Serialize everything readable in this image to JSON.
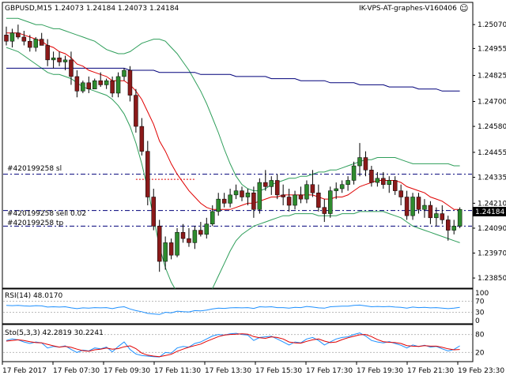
{
  "window": {
    "symbol_line": "GBPUSD,M15  1.24073 1.24184 1.24073 1.24184",
    "ea_label": "IK-VPS-AT-graphes-V160406",
    "smiley": "☺"
  },
  "price_axis": {
    "ticks": [
      "1.25070",
      "1.24955",
      "1.24825",
      "1.24700",
      "1.24580",
      "1.24455",
      "1.24335",
      "1.24210",
      "1.24090",
      "1.23970",
      "1.23850"
    ],
    "current_price": "1.24184"
  },
  "order_lines": {
    "sl_label": "#420199258 sl",
    "sell_label": "#420199258 sell 0.02",
    "tp_label": "#420199258 tp"
  },
  "rsi": {
    "label": "RSI(14) 48.0170",
    "levels": [
      "100",
      "70",
      "30",
      "0"
    ]
  },
  "stoch": {
    "label": "Sto(5,3,3) 42.2819 30.2241",
    "levels": [
      "80",
      "20"
    ]
  },
  "time_axis": {
    "labels": [
      "17 Feb 2017",
      "17 Feb 07:30",
      "17 Feb 09:30",
      "17 Feb 11:30",
      "17 Feb 13:30",
      "17 Feb 15:30",
      "17 Feb 17:30",
      "17 Feb 19:30",
      "17 Feb 21:30",
      "19 Feb 23:30"
    ]
  },
  "colors": {
    "bull": "#2e8b2e",
    "bear": "#8b1a1a",
    "ma_fast": "#e00000",
    "ma_slow": "#00007a",
    "band": "#2e9e5a",
    "rsi_line": "#1e90ff",
    "stoch_main": "#1e90ff",
    "stoch_signal": "#e00000",
    "order_line": "#00007a",
    "price_box": "#000000"
  },
  "chart_data": {
    "type": "candlestick",
    "symbol": "GBPUSD",
    "timeframe": "M15",
    "ylim": [
      1.2382,
      1.2512
    ],
    "candles": [
      [
        1.2502,
        1.2506,
        1.2497,
        1.2499
      ],
      [
        1.2499,
        1.2505,
        1.2496,
        1.2503
      ],
      [
        1.2503,
        1.2507,
        1.25,
        1.2501
      ],
      [
        1.2501,
        1.2504,
        1.2497,
        1.2499
      ],
      [
        1.2499,
        1.2502,
        1.2494,
        1.2496
      ],
      [
        1.2496,
        1.2501,
        1.2494,
        1.25
      ],
      [
        1.25,
        1.2503,
        1.2497,
        1.2497
      ],
      [
        1.2497,
        1.25,
        1.2487,
        1.249
      ],
      [
        1.249,
        1.2494,
        1.2486,
        1.2491
      ],
      [
        1.2491,
        1.2494,
        1.2487,
        1.2489
      ],
      [
        1.2489,
        1.2492,
        1.2485,
        1.249
      ],
      [
        1.249,
        1.2494,
        1.2478,
        1.2482
      ],
      [
        1.2482,
        1.2485,
        1.2472,
        1.2475
      ],
      [
        1.2475,
        1.248,
        1.2474,
        1.2479
      ],
      [
        1.2479,
        1.2482,
        1.2474,
        1.2476
      ],
      [
        1.2476,
        1.2481,
        1.2476,
        1.248
      ],
      [
        1.248,
        1.2484,
        1.2477,
        1.2478
      ],
      [
        1.2478,
        1.2481,
        1.2476,
        1.248
      ],
      [
        1.248,
        1.2482,
        1.2472,
        1.2474
      ],
      [
        1.2474,
        1.2484,
        1.2472,
        1.2482
      ],
      [
        1.2482,
        1.2486,
        1.248,
        1.2485
      ],
      [
        1.2485,
        1.2487,
        1.247,
        1.2473
      ],
      [
        1.2473,
        1.2476,
        1.2455,
        1.2458
      ],
      [
        1.2458,
        1.2462,
        1.2444,
        1.2446
      ],
      [
        1.2446,
        1.2451,
        1.242,
        1.2424
      ],
      [
        1.2424,
        1.2428,
        1.2408,
        1.241
      ],
      [
        1.241,
        1.2413,
        1.2388,
        1.2393
      ],
      [
        1.2393,
        1.2405,
        1.2389,
        1.2402
      ],
      [
        1.2402,
        1.2404,
        1.2394,
        1.2396
      ],
      [
        1.2396,
        1.2409,
        1.2395,
        1.2407
      ],
      [
        1.2407,
        1.2411,
        1.2402,
        1.2404
      ],
      [
        1.2404,
        1.2409,
        1.24,
        1.2402
      ],
      [
        1.2402,
        1.241,
        1.2399,
        1.2408
      ],
      [
        1.2408,
        1.2412,
        1.2405,
        1.2406
      ],
      [
        1.2406,
        1.2414,
        1.2404,
        1.2411
      ],
      [
        1.2411,
        1.242,
        1.241,
        1.2417
      ],
      [
        1.2417,
        1.2426,
        1.2415,
        1.2423
      ],
      [
        1.2423,
        1.2426,
        1.2419,
        1.2421
      ],
      [
        1.2421,
        1.2428,
        1.2419,
        1.2425
      ],
      [
        1.2425,
        1.243,
        1.2423,
        1.2427
      ],
      [
        1.2427,
        1.2429,
        1.2422,
        1.2424
      ],
      [
        1.2424,
        1.2428,
        1.242,
        1.2426
      ],
      [
        1.2426,
        1.2429,
        1.2414,
        1.2418
      ],
      [
        1.2418,
        1.2433,
        1.2416,
        1.2431
      ],
      [
        1.2431,
        1.2437,
        1.2427,
        1.2429
      ],
      [
        1.2429,
        1.2434,
        1.2425,
        1.2432
      ],
      [
        1.2432,
        1.2435,
        1.2423,
        1.2425
      ],
      [
        1.2425,
        1.243,
        1.242,
        1.2424
      ],
      [
        1.2424,
        1.2428,
        1.2417,
        1.242
      ],
      [
        1.242,
        1.2427,
        1.2418,
        1.2425
      ],
      [
        1.2425,
        1.2429,
        1.2421,
        1.2423
      ],
      [
        1.2423,
        1.2432,
        1.2421,
        1.243
      ],
      [
        1.243,
        1.2437,
        1.2424,
        1.2426
      ],
      [
        1.2426,
        1.243,
        1.2417,
        1.2419
      ],
      [
        1.2419,
        1.2423,
        1.2412,
        1.2416
      ],
      [
        1.2416,
        1.2429,
        1.2414,
        1.2427
      ],
      [
        1.2427,
        1.2431,
        1.2423,
        1.2428
      ],
      [
        1.2428,
        1.2432,
        1.2426,
        1.243
      ],
      [
        1.243,
        1.2434,
        1.2427,
        1.2432
      ],
      [
        1.2432,
        1.2441,
        1.243,
        1.2439
      ],
      [
        1.2439,
        1.245,
        1.2434,
        1.2443
      ],
      [
        1.2443,
        1.2446,
        1.2434,
        1.2437
      ],
      [
        1.2437,
        1.2439,
        1.2429,
        1.2431
      ],
      [
        1.2431,
        1.2436,
        1.2429,
        1.2433
      ],
      [
        1.2433,
        1.2436,
        1.2428,
        1.243
      ],
      [
        1.243,
        1.2434,
        1.2426,
        1.2432
      ],
      [
        1.2432,
        1.2434,
        1.2425,
        1.2427
      ],
      [
        1.2427,
        1.243,
        1.242,
        1.2424
      ],
      [
        1.2424,
        1.2427,
        1.2413,
        1.2415
      ],
      [
        1.2415,
        1.2426,
        1.2413,
        1.2424
      ],
      [
        1.2424,
        1.2426,
        1.2416,
        1.2418
      ],
      [
        1.2418,
        1.2423,
        1.2414,
        1.242
      ],
      [
        1.242,
        1.2422,
        1.2411,
        1.2414
      ],
      [
        1.2414,
        1.2419,
        1.241,
        1.2416
      ],
      [
        1.2416,
        1.242,
        1.2411,
        1.2413
      ],
      [
        1.2413,
        1.2415,
        1.2403,
        1.2408
      ],
      [
        1.2408,
        1.2413,
        1.2406,
        1.241
      ],
      [
        1.241,
        1.2419,
        1.2409,
        1.2418
      ]
    ],
    "ma_fast": [
      1.2503,
      1.2503,
      1.2503,
      1.2502,
      1.2501,
      1.25,
      1.2499,
      1.2497,
      1.2496,
      1.2494,
      1.2493,
      1.2491,
      1.2488,
      1.2487,
      1.2485,
      1.2484,
      1.2483,
      1.2482,
      1.248,
      1.248,
      1.248,
      1.2478,
      1.2475,
      1.2471,
      1.2465,
      1.2459,
      1.2451,
      1.2446,
      1.244,
      1.2435,
      1.2431,
      1.2427,
      1.2424,
      1.2421,
      1.2419,
      1.2418,
      1.2418,
      1.2418,
      1.2418,
      1.2419,
      1.242,
      1.2421,
      1.2421,
      1.2422,
      1.2423,
      1.2424,
      1.2424,
      1.2425,
      1.2425,
      1.2425,
      1.2425,
      1.2425,
      1.2425,
      1.2424,
      1.2423,
      1.2423,
      1.2424,
      1.2424,
      1.2425,
      1.2427,
      1.2429,
      1.243,
      1.2431,
      1.2432,
      1.2432,
      1.2432,
      1.2432,
      1.2431,
      1.2429,
      1.2428,
      1.2427,
      1.2426,
      1.2424,
      1.2423,
      1.2422,
      1.242,
      1.2418,
      1.2418
    ],
    "ma_slow": [
      1.2486,
      1.2486,
      1.2486,
      1.2486,
      1.2486,
      1.2486,
      1.2486,
      1.2486,
      1.2486,
      1.2486,
      1.2486,
      1.2486,
      1.2486,
      1.2486,
      1.2486,
      1.2486,
      1.2486,
      1.2486,
      1.2486,
      1.2486,
      1.2486,
      1.2485,
      1.2485,
      1.2485,
      1.2485,
      1.2485,
      1.2484,
      1.2484,
      1.2484,
      1.2484,
      1.2484,
      1.2484,
      1.2484,
      1.2483,
      1.2483,
      1.2483,
      1.2483,
      1.2483,
      1.2483,
      1.2482,
      1.2482,
      1.2482,
      1.2482,
      1.2482,
      1.2482,
      1.2481,
      1.2481,
      1.2481,
      1.2481,
      1.2481,
      1.248,
      1.248,
      1.248,
      1.248,
      1.248,
      1.2479,
      1.2479,
      1.2479,
      1.2479,
      1.2479,
      1.2478,
      1.2478,
      1.2478,
      1.2478,
      1.2478,
      1.2477,
      1.2477,
      1.2477,
      1.2477,
      1.2477,
      1.2476,
      1.2476,
      1.2476,
      1.2476,
      1.2475,
      1.2475,
      1.2475,
      1.2475
    ],
    "band_upper": [
      1.251,
      1.251,
      1.251,
      1.2509,
      1.2508,
      1.2507,
      1.2507,
      1.2506,
      1.2505,
      1.2505,
      1.2504,
      1.2503,
      1.2502,
      1.2501,
      1.25,
      1.2499,
      1.2497,
      1.2495,
      1.2494,
      1.2493,
      1.2493,
      1.2494,
      1.2496,
      1.2498,
      1.2499,
      1.25,
      1.25,
      1.2499,
      1.2496,
      1.2493,
      1.2489,
      1.2485,
      1.248,
      1.2475,
      1.2469,
      1.2462,
      1.2455,
      1.2447,
      1.244,
      1.2434,
      1.243,
      1.2428,
      1.2427,
      1.2427,
      1.2428,
      1.243,
      1.2431,
      1.2432,
      1.2433,
      1.2433,
      1.2434,
      1.2434,
      1.2435,
      1.2436,
      1.2436,
      1.2437,
      1.2437,
      1.2438,
      1.2439,
      1.244,
      1.2441,
      1.2442,
      1.2442,
      1.2443,
      1.2443,
      1.2443,
      1.2443,
      1.2442,
      1.2441,
      1.244,
      1.244,
      1.244,
      1.244,
      1.244,
      1.244,
      1.244,
      1.2439,
      1.2439
    ],
    "band_lower": [
      1.2496,
      1.2495,
      1.2494,
      1.2492,
      1.249,
      1.2488,
      1.2486,
      1.2484,
      1.2483,
      1.2483,
      1.2482,
      1.2481,
      1.2479,
      1.2477,
      1.2476,
      1.2475,
      1.2474,
      1.2473,
      1.2471,
      1.2468,
      1.2464,
      1.2458,
      1.245,
      1.244,
      1.2428,
      1.2414,
      1.24,
      1.239,
      1.2383,
      1.2378,
      1.2375,
      1.2373,
      1.2372,
      1.2373,
      1.2375,
      1.238,
      1.2386,
      1.2392,
      1.2398,
      1.2403,
      1.2406,
      1.2408,
      1.241,
      1.2411,
      1.2412,
      1.2413,
      1.2414,
      1.2415,
      1.2415,
      1.2416,
      1.2416,
      1.2416,
      1.2416,
      1.2415,
      1.2415,
      1.2415,
      1.2415,
      1.2416,
      1.2416,
      1.2416,
      1.2417,
      1.2417,
      1.2417,
      1.2417,
      1.2417,
      1.2416,
      1.2415,
      1.2414,
      1.2412,
      1.241,
      1.2409,
      1.2408,
      1.2407,
      1.2406,
      1.2405,
      1.2404,
      1.2403,
      1.2402
    ],
    "order_sl": 1.2435,
    "order_sell": 1.24175,
    "order_tp": 1.241,
    "rsi_values": [
      55,
      54,
      55,
      53,
      52,
      54,
      53,
      49,
      50,
      49,
      50,
      46,
      43,
      46,
      45,
      47,
      46,
      47,
      43,
      48,
      50,
      42,
      36,
      32,
      26,
      24,
      22,
      30,
      28,
      34,
      32,
      31,
      36,
      35,
      38,
      42,
      45,
      44,
      46,
      47,
      46,
      47,
      44,
      50,
      49,
      50,
      47,
      47,
      45,
      48,
      47,
      51,
      49,
      46,
      45,
      50,
      51,
      52,
      52,
      55,
      56,
      53,
      50,
      51,
      50,
      51,
      49,
      48,
      45,
      49,
      47,
      48,
      46,
      47,
      45,
      43,
      45,
      48
    ],
    "rsi_ylim": [
      0,
      100
    ],
    "stoch_main": [
      60,
      65,
      62,
      55,
      50,
      55,
      52,
      35,
      40,
      38,
      42,
      30,
      20,
      28,
      25,
      35,
      32,
      38,
      22,
      40,
      55,
      30,
      15,
      10,
      8,
      6,
      5,
      20,
      18,
      35,
      40,
      38,
      50,
      55,
      65,
      75,
      80,
      78,
      82,
      84,
      80,
      78,
      60,
      70,
      72,
      74,
      65,
      55,
      45,
      55,
      52,
      65,
      70,
      60,
      45,
      55,
      65,
      70,
      72,
      80,
      85,
      75,
      60,
      55,
      52,
      56,
      50,
      44,
      35,
      45,
      40,
      44,
      38,
      40,
      32,
      25,
      30,
      42
    ],
    "stoch_signal": [
      58,
      60,
      62,
      60,
      56,
      53,
      52,
      47,
      42,
      38,
      40,
      37,
      31,
      26,
      24,
      29,
      31,
      35,
      31,
      33,
      39,
      42,
      33,
      18,
      11,
      8,
      6,
      10,
      14,
      24,
      31,
      38,
      43,
      48,
      57,
      65,
      73,
      78,
      80,
      81,
      82,
      81,
      73,
      69,
      67,
      72,
      70,
      65,
      55,
      52,
      51,
      57,
      62,
      65,
      58,
      53,
      55,
      63,
      69,
      74,
      79,
      80,
      73,
      63,
      56,
      54,
      53,
      50,
      43,
      41,
      40,
      43,
      41,
      41,
      37,
      32,
      29,
      30
    ],
    "stoch_ylim": [
      0,
      100
    ]
  }
}
